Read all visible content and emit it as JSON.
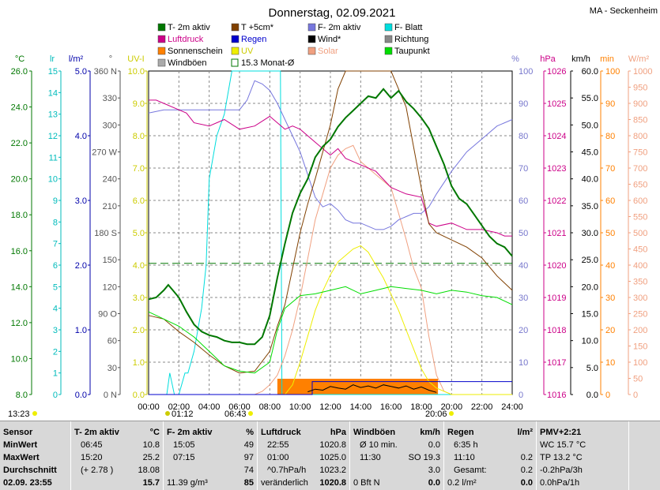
{
  "title": "Donnerstag, 02.09.2021",
  "station": "MA - Seckenheim",
  "legend": [
    {
      "label": "T- 2m aktiv",
      "color": "#007700",
      "kind": "box"
    },
    {
      "label": "T +5cm*",
      "color": "#804000",
      "kind": "box"
    },
    {
      "label": "F- 2m aktiv",
      "color": "#7777dd",
      "kind": "box"
    },
    {
      "label": "F- Blatt",
      "color": "#00dddd",
      "kind": "box"
    },
    {
      "label": "Luftdruck",
      "color": "#cc0088",
      "kind": "box"
    },
    {
      "label": "Regen",
      "color": "#0000cc",
      "kind": "box"
    },
    {
      "label": "Wind*",
      "color": "#000000",
      "kind": "box"
    },
    {
      "label": "Richtung",
      "color": "#888888",
      "kind": "box"
    },
    {
      "label": "Sonnenschein",
      "color": "#ff8000",
      "kind": "box"
    },
    {
      "label": "UV",
      "color": "#eeee00",
      "kind": "box"
    },
    {
      "label": "Solar",
      "color": "#f0a080",
      "kind": "box"
    },
    {
      "label": "Taupunkt",
      "color": "#00dd00",
      "kind": "box"
    },
    {
      "label": "Windböen",
      "color": "#aaaaaa",
      "kind": "box"
    },
    {
      "label": "15.3 Monat-Ø",
      "color": "#007700",
      "kind": "outline"
    }
  ],
  "axes": {
    "temp": {
      "unit": "°C",
      "ticks": [
        "26.0",
        "24.0",
        "22.0",
        "20.0",
        "18.0",
        "16.0",
        "14.0",
        "12.0",
        "10.0",
        "8.0"
      ],
      "color": "#007700"
    },
    "leaf": {
      "unit": "lr",
      "ticks": [
        "15",
        "14",
        "13",
        "12",
        "11",
        "10",
        "9",
        "8",
        "7",
        "6",
        "5",
        "4",
        "3",
        "2",
        "1",
        "0"
      ],
      "color": "#00bbbb"
    },
    "rain": {
      "unit": "l/m²",
      "ticks": [
        "5.0",
        "4.0",
        "3.0",
        "2.0",
        "1.0",
        "0.0"
      ],
      "color": "#0000aa"
    },
    "dir": {
      "unit": "°",
      "ticks": [
        "360 N",
        "330",
        "300",
        "270 W",
        "240",
        "210",
        "180 S",
        "150",
        "120",
        "90 O",
        "60",
        "30",
        "0 N"
      ],
      "color": "#555555"
    },
    "uv": {
      "unit": "UV-I",
      "ticks": [
        "10.0",
        "9.0",
        "8.0",
        "7.0",
        "6.0",
        "5.0",
        "4.0",
        "3.0",
        "2.0",
        "1.0",
        "0.0"
      ],
      "color": "#cccc00"
    },
    "hum": {
      "unit": "%",
      "ticks": [
        "100",
        "90",
        "80",
        "70",
        "60",
        "50",
        "40",
        "30",
        "20",
        "10",
        "0"
      ],
      "color": "#7777cc"
    },
    "press": {
      "unit": "hPa",
      "ticks": [
        "1026",
        "1025",
        "1024",
        "1023",
        "1022",
        "1021",
        "1020",
        "1019",
        "1018",
        "1017",
        "1016"
      ],
      "color": "#cc0088"
    },
    "wind": {
      "unit": "km/h",
      "ticks": [
        "60.0",
        "55.0",
        "50.0",
        "45.0",
        "40.0",
        "35.0",
        "30.0",
        "25.0",
        "20.0",
        "15.0",
        "10.0",
        "5.0",
        "0.0"
      ],
      "color": "#000000"
    },
    "min": {
      "unit": "min",
      "ticks": [
        "100",
        "90",
        "80",
        "70",
        "60",
        "50",
        "40",
        "30",
        "20",
        "10",
        "0"
      ],
      "color": "#ff8000"
    },
    "solar": {
      "unit": "W/m²",
      "ticks": [
        "1000",
        "950",
        "900",
        "850",
        "800",
        "750",
        "700",
        "650",
        "600",
        "550",
        "500",
        "450",
        "400",
        "350",
        "300",
        "250",
        "200",
        "150",
        "100",
        "50",
        "0"
      ],
      "color": "#f0a080"
    },
    "time": [
      "00:00",
      "02:00",
      "04:00",
      "06:00",
      "08:00",
      "10:00",
      "12:00",
      "14:00",
      "16:00",
      "18:00",
      "20:00",
      "22:00",
      "24:00"
    ]
  },
  "markers": {
    "left": "13:23",
    "moon_rise": "01:12",
    "sunrise": "06:43",
    "sunset": "20:06"
  },
  "chart_data": {
    "type": "line",
    "x_unit": "hour",
    "temp_range": [
      8,
      26
    ],
    "monthly_avg_temp": 15.3,
    "series": [
      {
        "name": "T- 2m aktiv",
        "axis": "temp",
        "x": [
          0,
          0.5,
          1,
          1.3,
          1.6,
          2,
          2.5,
          3,
          3.5,
          4,
          4.5,
          5,
          5.5,
          6,
          6.5,
          7,
          7.5,
          8,
          8.5,
          9,
          9.5,
          10,
          10.5,
          11,
          11.5,
          12,
          12.5,
          13,
          13.5,
          14,
          14.5,
          15,
          15.5,
          16,
          16.5,
          17,
          17.5,
          18,
          18.5,
          19,
          19.5,
          20,
          20.5,
          21,
          21.5,
          22,
          22.5,
          23,
          23.5,
          24
        ],
        "y": [
          13.3,
          13.4,
          13.8,
          14.1,
          13.8,
          13.4,
          12.6,
          11.9,
          11.5,
          11.3,
          11.2,
          11.0,
          10.9,
          10.9,
          10.8,
          10.8,
          11.2,
          12.4,
          14.5,
          16.4,
          18.1,
          19.2,
          20.0,
          21.2,
          21.8,
          22.2,
          22.9,
          23.4,
          23.8,
          24.2,
          24.6,
          24.5,
          25.0,
          24.5,
          24.9,
          24.3,
          23.9,
          23.4,
          22.8,
          21.8,
          20.8,
          19.6,
          18.9,
          18.6,
          18.0,
          17.4,
          16.8,
          16.4,
          16.2,
          15.7
        ]
      },
      {
        "name": "Taupunkt",
        "axis": "temp",
        "x": [
          0,
          1,
          2,
          3,
          4,
          5,
          6,
          7,
          8,
          8.5,
          9,
          10,
          11,
          12,
          13,
          14,
          15,
          16,
          17,
          18,
          19,
          20,
          21,
          22,
          23,
          24
        ],
        "y": [
          12.6,
          12.2,
          11.8,
          11.2,
          10.4,
          9.6,
          9.3,
          9.2,
          9.8,
          11.6,
          12.8,
          13.5,
          13.6,
          13.8,
          14.0,
          13.6,
          13.8,
          14.0,
          13.9,
          13.8,
          13.6,
          13.8,
          13.7,
          13.5,
          13.4,
          13.0
        ]
      },
      {
        "name": "T +5cm*",
        "axis": "temp",
        "x": [
          0,
          1,
          2,
          3,
          4,
          5,
          6,
          7,
          8,
          8.5,
          9,
          9.5,
          10,
          10.5,
          11,
          11.5,
          12,
          12.5,
          13,
          13.5,
          14,
          15,
          16,
          17,
          18,
          18.5,
          19,
          20,
          21,
          22,
          23,
          24
        ],
        "y": [
          12.4,
          12.2,
          11.5,
          10.9,
          10.2,
          9.6,
          9.2,
          9.3,
          10.4,
          11.8,
          13.0,
          15.0,
          17.0,
          18.6,
          20.0,
          21.5,
          23.0,
          25.0,
          27.0,
          29.0,
          31.0,
          31.0,
          29.0,
          24.0,
          19.5,
          17.5,
          17.0,
          16.6,
          16.2,
          15.6,
          14.6,
          13.8
        ]
      },
      {
        "name": "F- 2m aktiv",
        "axis": "hum",
        "x": [
          0,
          1,
          2,
          3,
          4,
          5,
          6,
          6.5,
          7,
          7.5,
          8,
          8.5,
          9,
          9.5,
          10,
          10.5,
          11,
          11.5,
          12,
          12.5,
          13,
          13.5,
          14,
          14.5,
          15,
          15.5,
          16,
          16.5,
          17,
          17.5,
          18,
          18.5,
          19,
          20,
          21,
          22,
          23,
          24
        ],
        "y": [
          87,
          88,
          88,
          88,
          88,
          88,
          88,
          91,
          97,
          96,
          94,
          90,
          85,
          80,
          75,
          68,
          61,
          58,
          59,
          57,
          54,
          53,
          53,
          52,
          51,
          51,
          52,
          54,
          55,
          56,
          56,
          58,
          62,
          69,
          75,
          79,
          83,
          85
        ]
      },
      {
        "name": "Luftdruck",
        "axis": "press",
        "x": [
          0,
          0.5,
          1,
          2,
          2.5,
          3,
          4,
          5,
          6,
          7,
          8,
          8.5,
          9,
          9.5,
          10,
          11,
          12,
          12.5,
          13,
          14,
          15,
          16,
          17,
          18,
          18.5,
          19,
          20,
          21,
          22,
          23,
          23.5,
          24
        ],
        "y": [
          1025.1,
          1025.1,
          1025.0,
          1024.8,
          1024.7,
          1024.4,
          1024.3,
          1024.5,
          1024.2,
          1024.3,
          1024.6,
          1024.4,
          1024.2,
          1024.3,
          1024.2,
          1023.8,
          1023.4,
          1023.6,
          1023.3,
          1023.1,
          1022.9,
          1022.4,
          1022.2,
          1022.1,
          1021.3,
          1021.2,
          1021.3,
          1021.1,
          1021.1,
          1021.0,
          1020.9,
          1020.9
        ]
      },
      {
        "name": "Solar",
        "axis": "solar",
        "x": [
          0,
          7,
          7.5,
          8,
          8.5,
          9,
          9.5,
          10,
          10.5,
          11,
          11.5,
          12,
          12.5,
          13,
          13.5,
          14,
          14.5,
          15,
          15.5,
          16,
          16.5,
          17,
          17.5,
          18,
          18.5,
          19,
          19.5,
          20,
          24
        ],
        "y": [
          0,
          0,
          10,
          30,
          60,
          120,
          200,
          300,
          420,
          540,
          620,
          700,
          740,
          760,
          770,
          720,
          700,
          680,
          660,
          640,
          560,
          480,
          390,
          330,
          180,
          60,
          10,
          0,
          0
        ]
      },
      {
        "name": "UV",
        "axis": "uv",
        "x": [
          0,
          9,
          9.5,
          10,
          10.5,
          11,
          11.5,
          12,
          12.5,
          13,
          13.5,
          14,
          14.5,
          15,
          15.5,
          16,
          16.5,
          17,
          17.5,
          18,
          18.5,
          19,
          19.5,
          20,
          24
        ],
        "y": [
          0,
          0,
          0.3,
          1.0,
          1.8,
          2.6,
          3.2,
          3.7,
          4.1,
          4.3,
          4.5,
          4.6,
          4.4,
          4.0,
          3.6,
          3.1,
          2.6,
          2.0,
          1.4,
          0.8,
          0.4,
          0.2,
          0.1,
          0,
          0
        ]
      },
      {
        "name": "F- Blatt",
        "axis": "leaf",
        "x": [
          0,
          1,
          1.2,
          1.4,
          1.7,
          2,
          2.4,
          2.6,
          3,
          3.5,
          3.8,
          4,
          4.5,
          5,
          5.5,
          6,
          6.5,
          7,
          8,
          8.5,
          8.7,
          8.8,
          9,
          24
        ],
        "y": [
          0,
          0,
          0,
          1,
          0,
          0,
          1,
          1,
          2,
          4,
          6,
          10,
          12,
          13,
          15,
          15,
          15,
          15,
          15,
          15,
          15,
          0,
          0,
          0
        ]
      },
      {
        "name": "Wind*",
        "axis": "wind",
        "x": [
          10.5,
          11,
          11.5,
          12,
          12.5,
          13,
          13.5,
          14,
          14.5,
          15,
          15.5,
          16,
          16.5,
          17,
          17.5,
          18,
          18.5,
          19
        ],
        "y": [
          0.5,
          1.0,
          0.8,
          1.5,
          1.2,
          1.0,
          1.8,
          1.3,
          1.6,
          1.2,
          1.8,
          1.5,
          1.2,
          1.6,
          1.0,
          1.4,
          0.8,
          0.4
        ]
      },
      {
        "name": "Regen",
        "axis": "rain",
        "x": [
          0,
          10.8,
          10.8,
          24
        ],
        "y": [
          0,
          0,
          0.2,
          0.2
        ]
      }
    ],
    "sunshine_bands": [
      [
        8.5,
        19.1
      ]
    ]
  },
  "footer": {
    "sensor": {
      "title": "Sensor",
      "rows": [
        "MinWert",
        "MaxWert",
        "Durchschnitt",
        "02.09.  23:55"
      ]
    },
    "t2m": {
      "title": "T- 2m aktiv",
      "unit": "°C",
      "rows": [
        [
          "06:45",
          "10.8"
        ],
        [
          "15:20",
          "25.2"
        ],
        [
          "(+ 2.78 )",
          "18.08"
        ],
        [
          "",
          "15.7"
        ]
      ]
    },
    "f2m": {
      "title": "F- 2m aktiv",
      "unit": "%",
      "rows": [
        [
          "15:05",
          "49"
        ],
        [
          "07:15",
          "97"
        ],
        [
          "",
          "74"
        ],
        [
          "11.39 g/m³",
          "85"
        ]
      ]
    },
    "press": {
      "title": "Luftdruck",
      "unit": "hPa",
      "rows": [
        [
          "22:55",
          "1020.8"
        ],
        [
          "01:00",
          "1025.0"
        ],
        [
          "^0.7hPa/h",
          "1023.2"
        ],
        [
          "veränderlich",
          "1020.8"
        ]
      ]
    },
    "wind": {
      "title": "Windböen",
      "unit": "km/h",
      "rows": [
        [
          "Ø 10 min.",
          "0.0"
        ],
        [
          "11:30",
          "SO 19.3"
        ],
        [
          "",
          "3.0"
        ],
        [
          "0 Bft N",
          "0.0"
        ]
      ]
    },
    "rain": {
      "title": "Regen",
      "unit": "l/m²",
      "rows": [
        [
          "6:35 h",
          ""
        ],
        [
          "11:10",
          "0.2"
        ],
        [
          "Gesamt:",
          "0.2"
        ],
        [
          "0.2 l/m²",
          "0.0"
        ]
      ]
    },
    "pmv": {
      "title": "PMV+2:21",
      "rows": [
        "WC 15.7 °C",
        "TP 13.2 °C",
        "-0.2hPa/3h",
        "0.0hPa/1h"
      ]
    }
  }
}
